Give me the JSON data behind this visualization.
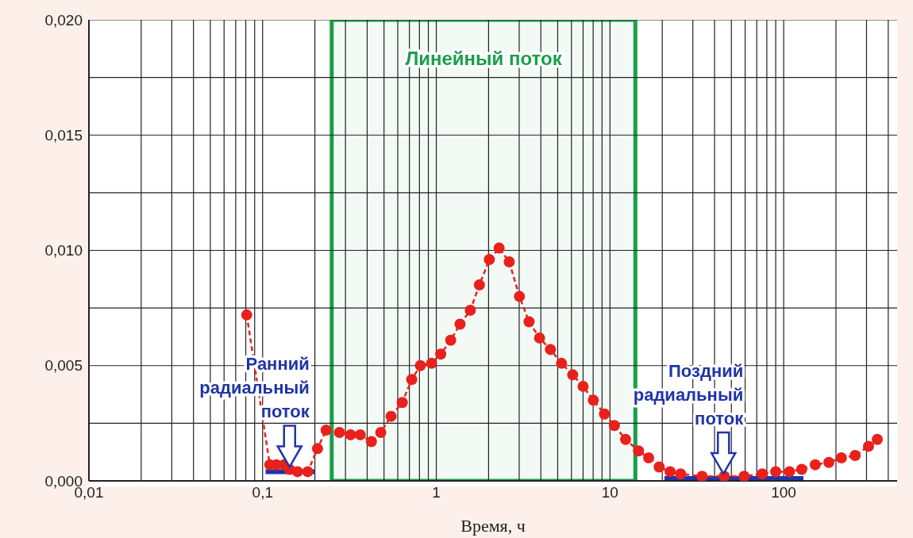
{
  "chart_data": {
    "type": "line",
    "xlabel": "Время, ч",
    "log": "x",
    "grid": true,
    "xlim": [
      0.01,
      450
    ],
    "ylim": [
      0,
      0.02
    ],
    "xticks": [
      {
        "value": 0.01,
        "label": "0,01"
      },
      {
        "value": 0.02,
        "label": null
      },
      {
        "value": 0.03,
        "label": null
      },
      {
        "value": 0.04,
        "label": null
      },
      {
        "value": 0.05,
        "label": null
      },
      {
        "value": 0.06,
        "label": null
      },
      {
        "value": 0.07,
        "label": null
      },
      {
        "value": 0.08,
        "label": null
      },
      {
        "value": 0.09,
        "label": null
      },
      {
        "value": 0.1,
        "label": "0,1"
      },
      {
        "value": 0.2,
        "label": null
      },
      {
        "value": 0.3,
        "label": null
      },
      {
        "value": 0.4,
        "label": null
      },
      {
        "value": 0.5,
        "label": null
      },
      {
        "value": 0.6,
        "label": null
      },
      {
        "value": 0.7,
        "label": null
      },
      {
        "value": 0.8,
        "label": null
      },
      {
        "value": 0.9,
        "label": null
      },
      {
        "value": 1,
        "label": "1"
      },
      {
        "value": 2,
        "label": null
      },
      {
        "value": 3,
        "label": null
      },
      {
        "value": 4,
        "label": null
      },
      {
        "value": 5,
        "label": null
      },
      {
        "value": 6,
        "label": null
      },
      {
        "value": 7,
        "label": null
      },
      {
        "value": 8,
        "label": null
      },
      {
        "value": 9,
        "label": null
      },
      {
        "value": 10,
        "label": "10"
      },
      {
        "value": 20,
        "label": null
      },
      {
        "value": 30,
        "label": null
      },
      {
        "value": 40,
        "label": null
      },
      {
        "value": 50,
        "label": null
      },
      {
        "value": 60,
        "label": null
      },
      {
        "value": 70,
        "label": null
      },
      {
        "value": 80,
        "label": null
      },
      {
        "value": 90,
        "label": null
      },
      {
        "value": 100,
        "label": "100"
      },
      {
        "value": 200,
        "label": null
      },
      {
        "value": 300,
        "label": null
      },
      {
        "value": 400,
        "label": null
      }
    ],
    "yticks": [
      {
        "value": 0,
        "label": "0,000"
      },
      {
        "value": 0.0025,
        "label": null
      },
      {
        "value": 0.005,
        "label": "0,005"
      },
      {
        "value": 0.0075,
        "label": null
      },
      {
        "value": 0.01,
        "label": "0,010"
      },
      {
        "value": 0.0125,
        "label": null
      },
      {
        "value": 0.015,
        "label": "0,015"
      },
      {
        "value": 0.0175,
        "label": null
      },
      {
        "value": 0.02,
        "label": "0,020"
      }
    ],
    "series": [
      {
        "type": "line",
        "color": "#1f35a8",
        "marker": "none",
        "line_style": "solid",
        "x": [
          0.104,
          0.2
        ],
        "values": [
          0.0004,
          0.0004
        ]
      },
      {
        "type": "line",
        "color": "#1f35a8",
        "marker": "none",
        "line_style": "solid",
        "x": [
          20.6,
          130
        ],
        "values": [
          0.0001,
          0.0001
        ]
      },
      {
        "type": "line",
        "color": "#e8211d",
        "marker": "circle",
        "line_style": "dashed",
        "x": [
          0.081,
          0.11,
          0.12,
          0.133,
          0.143,
          0.159,
          0.182,
          0.207,
          0.232,
          0.277,
          0.321,
          0.365,
          0.423,
          0.479,
          0.549,
          0.637,
          0.722,
          0.81,
          0.939,
          1.06,
          1.21,
          1.37,
          1.57,
          1.77,
          2.02,
          2.3,
          2.63,
          3.01,
          3.42,
          3.93,
          4.54,
          5.26,
          6.1,
          7.0,
          8.02,
          9.29,
          10.6,
          12.3,
          14.6,
          16.7,
          19.2,
          22.2,
          25.5,
          33.9,
          45.5,
          59.2,
          75.3,
          90.0,
          108,
          127,
          152,
          182,
          215,
          258,
          308,
          346
        ],
        "values": [
          0.0072,
          0.0007,
          0.0007,
          0.0007,
          0.0005,
          0.0004,
          0.0004,
          0.0014,
          0.0022,
          0.0021,
          0.002,
          0.002,
          0.0017,
          0.0021,
          0.0028,
          0.0034,
          0.0044,
          0.005,
          0.0051,
          0.0055,
          0.0061,
          0.0068,
          0.0074,
          0.0085,
          0.0096,
          0.0101,
          0.0095,
          0.008,
          0.0069,
          0.0062,
          0.0057,
          0.0051,
          0.0046,
          0.0041,
          0.0035,
          0.0029,
          0.0024,
          0.0018,
          0.0013,
          0.001,
          0.0006,
          0.0004,
          0.0003,
          0.0002,
          0.0002,
          0.0002,
          0.0003,
          0.0004,
          0.0004,
          0.0005,
          0.0007,
          0.0008,
          0.001,
          0.0011,
          0.0015,
          0.0018
        ]
      }
    ],
    "bands": [
      {
        "axis": "x",
        "from": 0.25,
        "to": 14,
        "label": "Линейный поток",
        "color": "#1a9e4a"
      }
    ],
    "annotations": [
      {
        "text": "Ранний\nрадиальный\nпоток",
        "x": 0.143,
        "y": 0.0004
      },
      {
        "text": "Поздний\nрадиальный\nпоток",
        "x": 45,
        "y": 0.0001
      }
    ]
  }
}
